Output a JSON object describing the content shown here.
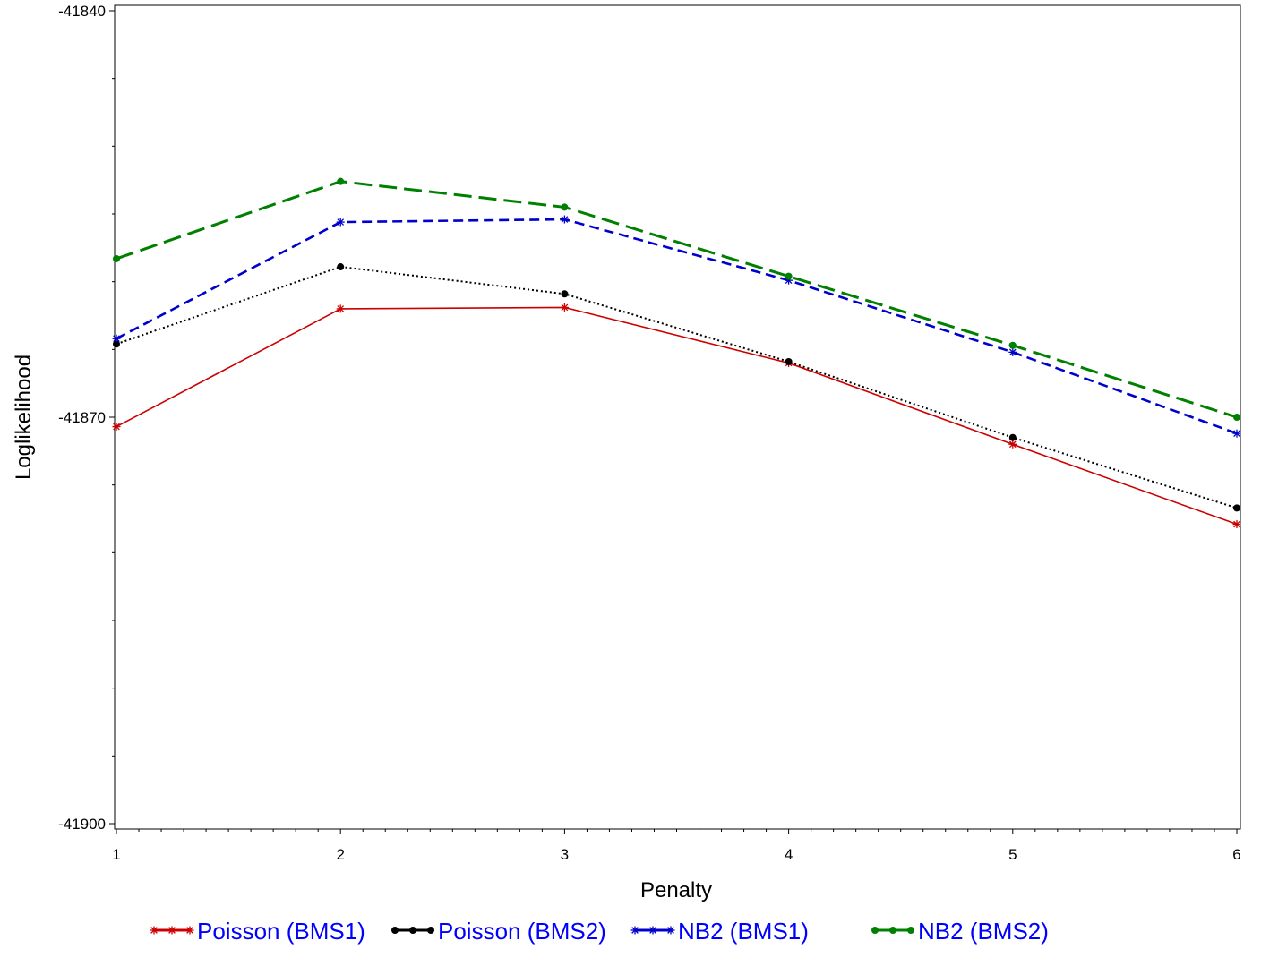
{
  "chart_data": {
    "type": "line",
    "xlabel": "Penalty",
    "ylabel": "Loglikelihood",
    "x": [
      1,
      2,
      3,
      4,
      5,
      6
    ],
    "xlim": [
      1,
      6
    ],
    "ylim": [
      -41900,
      -41840
    ],
    "xticks": [
      1,
      2,
      3,
      4,
      5,
      6
    ],
    "yticks": [
      -41900,
      -41870,
      -41840
    ],
    "legend_position": "bottom",
    "legend_text_color": "#0000FF",
    "grid": false,
    "series": [
      {
        "name": "Poisson (BMS1)",
        "values": [
          -41870.7,
          -41862.0,
          -41861.9,
          -41866.0,
          -41872.0,
          -41877.9
        ],
        "color": "#CC0000",
        "line_style": "solid",
        "marker": "star"
      },
      {
        "name": "Poisson (BMS2)",
        "values": [
          -41864.6,
          -41858.9,
          -41860.9,
          -41865.9,
          -41871.5,
          -41876.7
        ],
        "color": "#000000",
        "line_style": "dotted",
        "marker": "circle"
      },
      {
        "name": "NB2 (BMS1)",
        "values": [
          -41864.2,
          -41855.6,
          -41855.4,
          -41859.9,
          -41865.2,
          -41871.2
        ],
        "color": "#0000CC",
        "line_style": "dashed",
        "marker": "star"
      },
      {
        "name": "NB2 (BMS2)",
        "values": [
          -41858.3,
          -41852.6,
          -41854.5,
          -41859.6,
          -41864.7,
          -41870.0
        ],
        "color": "#008000",
        "line_style": "longdash",
        "marker": "circle"
      }
    ]
  }
}
